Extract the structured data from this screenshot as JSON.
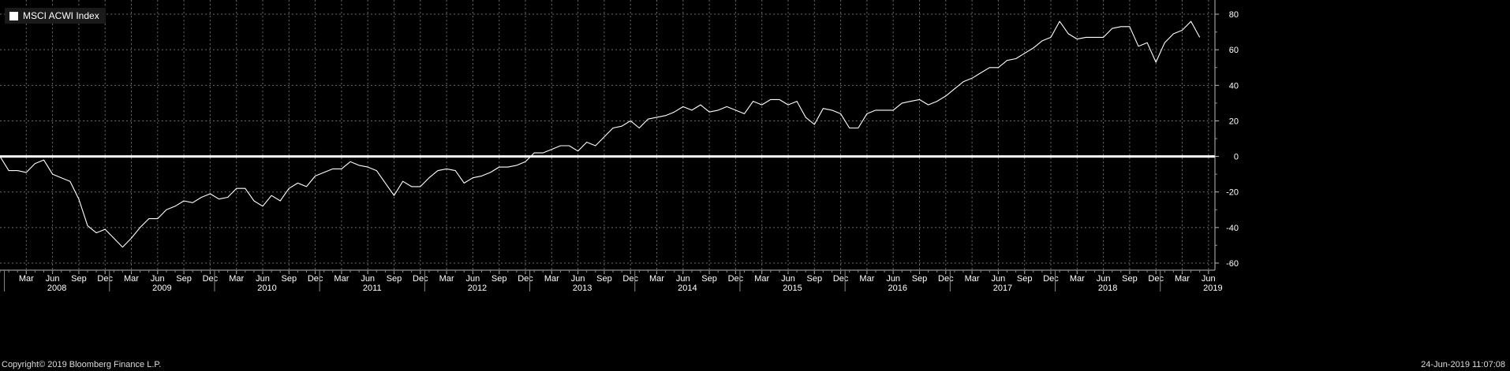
{
  "legend": {
    "label": "MSCI ACWI Index",
    "swatch_color": "#ffffff"
  },
  "footer": {
    "copyright": "Copyright© 2019 Bloomberg Finance L.P.",
    "timestamp": "24-Jun-2019 11:07:08"
  },
  "chart_data": {
    "type": "line",
    "title": "",
    "xlabel": "",
    "ylabel": "",
    "ylim": [
      -64,
      88
    ],
    "yticks": [
      -60,
      -40,
      -20,
      0,
      20,
      40,
      60,
      80
    ],
    "grid": true,
    "legend_position": "top-left",
    "reference_line": 0,
    "month_ticks": [
      "Mar",
      "Jun",
      "Sep",
      "Dec",
      "Mar",
      "Jun",
      "Sep",
      "Dec",
      "Mar",
      "Jun",
      "Sep",
      "Dec",
      "Mar",
      "Jun",
      "Sep",
      "Dec",
      "Mar",
      "Jun",
      "Sep",
      "Dec",
      "Mar",
      "Jun",
      "Sep",
      "Dec",
      "Mar",
      "Jun",
      "Sep",
      "Dec",
      "Mar",
      "Jun",
      "Sep",
      "Dec",
      "Mar",
      "Jun",
      "Sep",
      "Dec",
      "Mar",
      "Jun",
      "Sep",
      "Dec",
      "Mar",
      "Jun",
      "Sep",
      "Dec",
      "Mar",
      "Jun"
    ],
    "year_ticks": [
      "2008",
      "2009",
      "2010",
      "2011",
      "2012",
      "2013",
      "2014",
      "2015",
      "2016",
      "2017",
      "2018",
      "2019"
    ],
    "series": [
      {
        "name": "MSCI ACWI Index",
        "color": "#ffffff",
        "start": "Dec 2007",
        "frequency": "monthly",
        "values": [
          0,
          -8,
          -8,
          -9,
          -4,
          -2,
          -10,
          -12,
          -14,
          -24,
          -39,
          -43,
          -41,
          -46,
          -51,
          -46,
          -40,
          -35,
          -35,
          -30,
          -28,
          -25,
          -26,
          -23,
          -21,
          -24,
          -23,
          -18,
          -18,
          -25,
          -28,
          -22,
          -25,
          -18,
          -15,
          -17,
          -11,
          -9,
          -7,
          -7,
          -3,
          -5,
          -6,
          -8,
          -15,
          -22,
          -14,
          -17,
          -17,
          -12,
          -8,
          -7,
          -8,
          -15,
          -12,
          -11,
          -9,
          -6,
          -6,
          -5,
          -3,
          2,
          2,
          4,
          6,
          6,
          3,
          8,
          6,
          11,
          16,
          17,
          20,
          16,
          21,
          22,
          23,
          25,
          28,
          26,
          29,
          25,
          26,
          28,
          26,
          24,
          31,
          29,
          32,
          32,
          29,
          31,
          22,
          18,
          27,
          26,
          24,
          16,
          16,
          24,
          26,
          26,
          26,
          30,
          31,
          32,
          29,
          31,
          34,
          38,
          42,
          44,
          47,
          50,
          50,
          54,
          55,
          58,
          61,
          65,
          67,
          76,
          69,
          66,
          67,
          67,
          67,
          72,
          73,
          73,
          62,
          64,
          53,
          64,
          69,
          71,
          76,
          67
        ]
      }
    ]
  }
}
